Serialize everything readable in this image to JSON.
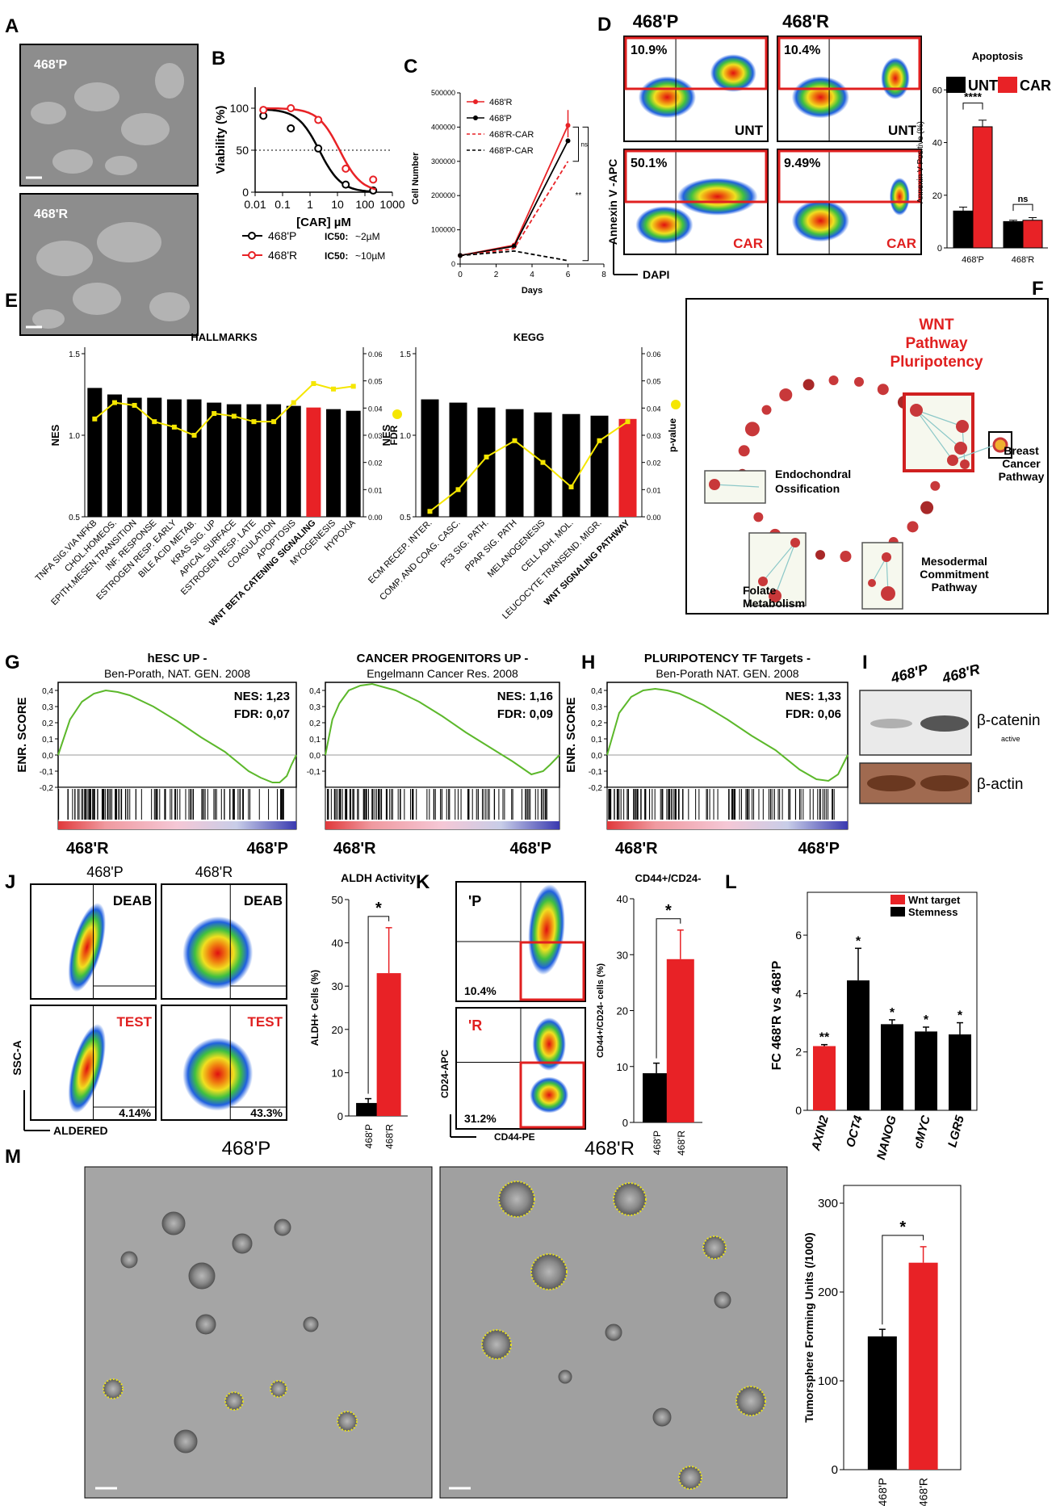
{
  "panel_letters": [
    "A",
    "B",
    "C",
    "D",
    "E",
    "F",
    "G",
    "H",
    "I",
    "J",
    "K",
    "L",
    "M"
  ],
  "colors": {
    "red": "#e82226",
    "black": "#000000",
    "yellow": "#f5e600",
    "green": "#5cb82b",
    "node": "#c8383a"
  },
  "A": {
    "top_label": "468'P",
    "bottom_label": "468'R"
  },
  "chart_data": [
    {
      "id": "B",
      "type": "line",
      "xlabel": "[CAR] µM",
      "ylabel": "Viability (%)",
      "xlim": [
        0.01,
        1000
      ],
      "ylim": [
        0,
        125
      ],
      "xscale": "log",
      "xticks": [
        "0.01",
        "0.1",
        "1",
        "10",
        "100",
        "1000"
      ],
      "yticks": [
        "0",
        "50",
        "100"
      ],
      "reference_line": 50,
      "x": [
        0.02,
        0.2,
        2,
        20,
        200
      ],
      "series": [
        {
          "name": "468'P",
          "values": [
            91,
            76,
            52,
            9,
            2
          ],
          "ic50_label": "IC50:",
          "ic50": "~2µM",
          "color": "#000000"
        },
        {
          "name": "468'R",
          "values": [
            98,
            100,
            86,
            28,
            15
          ],
          "ic50_label": "IC50:",
          "ic50": "~10µM",
          "color": "#e82226"
        }
      ]
    },
    {
      "id": "C",
      "type": "line",
      "xlabel": "Days",
      "ylabel": "Cell Number",
      "xlim": [
        0,
        8
      ],
      "ylim": [
        0,
        500000
      ],
      "xticks": [
        "0",
        "2",
        "4",
        "6",
        "8"
      ],
      "yticks": [
        "0",
        "100000",
        "200000",
        "300000",
        "400000",
        "500000"
      ],
      "x": [
        0,
        3,
        6
      ],
      "series": [
        {
          "name": "468'R",
          "values": [
            25000,
            55000,
            405000
          ],
          "color": "#e82226",
          "dash": false
        },
        {
          "name": "468'P",
          "values": [
            25000,
            52000,
            360000
          ],
          "color": "#000000",
          "dash": false
        },
        {
          "name": "468'R-CAR",
          "values": [
            25000,
            45000,
            300000
          ],
          "color": "#e82226",
          "dash": true
        },
        {
          "name": "468'P-CAR",
          "values": [
            25000,
            38000,
            10000
          ],
          "color": "#000000",
          "dash": true
        }
      ],
      "annotations": [
        "ns",
        "**"
      ]
    },
    {
      "id": "D",
      "type": "bar",
      "title": "Apoptosis",
      "ylabel": "Annexin V Positive (%)",
      "ylim": [
        0,
        65
      ],
      "yticks": [
        "0",
        "20",
        "40",
        "60"
      ],
      "categories": [
        "468'P",
        "468'R"
      ],
      "series": [
        {
          "name": "UNT",
          "values": [
            14,
            10
          ],
          "errors": [
            1.5,
            0.5
          ],
          "color": "#000000"
        },
        {
          "name": "CAR",
          "values": [
            46,
            10.5
          ],
          "errors": [
            2.5,
            1
          ],
          "color": "#e82226"
        }
      ],
      "significance": [
        "****",
        "ns"
      ]
    },
    {
      "id": "E1",
      "type": "bar",
      "title": "HALLMARKS",
      "ylabel": "NES",
      "y2label": "FDR",
      "ylim": [
        0.5,
        1.5
      ],
      "yticks": [
        "0.5",
        "1.0",
        "1.5"
      ],
      "y2lim": [
        0,
        0.06
      ],
      "y2ticks": [
        "0.00",
        "0.01",
        "0.02",
        "0.03",
        "0.04",
        "0.05",
        "0.06"
      ],
      "categories": [
        "TNFA SIG.VIA NFKB",
        "CHOL.HOMEOS.",
        "EPITH.MESEN.TRANSITION",
        "INF. RESPONSE",
        "ESTROGEN RESP. EARLY",
        "BILE ACID METAB.",
        "KRAS SIG. UP",
        "APICAL SURFACE",
        "ESTROGEN RESP. LATE",
        "COAGULATION",
        "APOPTOSIS",
        "WNT BETA CATENING SIGNALING",
        "MYOGENESIS",
        "HYPOXIA"
      ],
      "values": [
        1.29,
        1.25,
        1.23,
        1.23,
        1.22,
        1.22,
        1.2,
        1.19,
        1.19,
        1.19,
        1.18,
        1.17,
        1.16,
        1.15
      ],
      "line_values": [
        0.036,
        0.042,
        0.041,
        0.035,
        0.033,
        0.03,
        0.038,
        0.037,
        0.035,
        0.035,
        0.042,
        0.049,
        0.047,
        0.048
      ],
      "highlight_index": 11
    },
    {
      "id": "E2",
      "type": "bar",
      "title": "KEGG",
      "ylabel": "NES",
      "y2label": "p-value",
      "ylim": [
        0.5,
        1.5
      ],
      "yticks": [
        "0.5",
        "1.0",
        "1.5"
      ],
      "y2lim": [
        0,
        0.06
      ],
      "y2ticks": [
        "0.00",
        "0.01",
        "0.02",
        "0.03",
        "0.04",
        "0.05",
        "0.06"
      ],
      "categories": [
        "ECM RECEP. INTER.",
        "COMP. AND COAG. CASC.",
        "P53 SIG. PATH.",
        "PPAR SIG. PATH",
        "MELANOGENESIS",
        "CELL ADH. MOL.",
        "LEUCOCYTE TRANSEND. MIGR.",
        "WNT SIGNALING PATHWAY"
      ],
      "values": [
        1.22,
        1.2,
        1.17,
        1.16,
        1.14,
        1.13,
        1.12,
        1.1
      ],
      "line_values": [
        0.002,
        0.01,
        0.022,
        0.028,
        0.02,
        0.011,
        0.028,
        0.035
      ],
      "highlight_index": 7
    },
    {
      "id": "G1",
      "type": "line",
      "title": "hESC UP",
      "subtitle": "Ben-Porath, NAT. GEN. 2008",
      "ylabel": "ENR. SCORE",
      "yticks": [
        "0,4",
        "0,3",
        "0,2",
        "0,1",
        "0,0",
        "-0,1",
        "-0,2"
      ],
      "ylim": [
        -0.2,
        0.45
      ],
      "stats": [
        "NES: 1,23",
        "FDR: 0,07"
      ],
      "x_left": "468'R",
      "x_right": "468'P",
      "x": [
        0,
        5,
        10,
        15,
        20,
        25,
        30,
        40,
        50,
        60,
        70,
        80,
        85,
        90,
        93,
        96,
        98,
        100
      ],
      "values": [
        0.0,
        0.22,
        0.33,
        0.38,
        0.4,
        0.39,
        0.37,
        0.3,
        0.21,
        0.11,
        0.02,
        -0.1,
        -0.14,
        -0.17,
        -0.17,
        -0.13,
        -0.06,
        0.0
      ]
    },
    {
      "id": "G2",
      "type": "line",
      "title": "CANCER PROGENITORS UP",
      "subtitle": "Engelmann Cancer Res. 2008",
      "yticks": [
        "0,4",
        "0,3",
        "0,2",
        "0,1",
        "0,0",
        "-0,1"
      ],
      "ylim": [
        -0.15,
        0.45
      ],
      "stats": [
        "NES: 1,16",
        "FDR: 0,09"
      ],
      "x_left": "468'R",
      "x_right": "468'P",
      "x": [
        0,
        3,
        6,
        10,
        15,
        20,
        25,
        30,
        40,
        50,
        60,
        70,
        80,
        88,
        93,
        96,
        100
      ],
      "values": [
        0.0,
        0.22,
        0.32,
        0.4,
        0.43,
        0.44,
        0.42,
        0.4,
        0.33,
        0.24,
        0.14,
        0.05,
        -0.04,
        -0.12,
        -0.1,
        -0.06,
        0.0
      ]
    },
    {
      "id": "H",
      "type": "line",
      "title": "PLURIPOTENCY TF Targets",
      "subtitle": "Ben-Porath NAT. GEN. 2008",
      "ylabel": "ENR. SCORE",
      "yticks": [
        "0,4",
        "0,3",
        "0,2",
        "0,1",
        "0,0",
        "-0,1",
        "-0,2"
      ],
      "ylim": [
        -0.2,
        0.45
      ],
      "stats": [
        "NES: 1,33",
        "FDR: 0,06"
      ],
      "x_left": "468'R",
      "x_right": "468'P",
      "x": [
        0,
        5,
        10,
        15,
        20,
        25,
        30,
        40,
        50,
        60,
        70,
        80,
        87,
        92,
        96,
        98,
        100
      ],
      "values": [
        0.0,
        0.26,
        0.36,
        0.4,
        0.41,
        0.4,
        0.38,
        0.31,
        0.22,
        0.12,
        0.03,
        -0.09,
        -0.15,
        -0.16,
        -0.12,
        -0.06,
        0.0
      ]
    },
    {
      "id": "J",
      "type": "bar",
      "title": "ALDH Activity",
      "ylabel": "ALDH+ Cells (%)",
      "ylim": [
        0,
        50
      ],
      "yticks": [
        "0",
        "10",
        "20",
        "30",
        "40",
        "50"
      ],
      "categories": [
        "468'P",
        "468'R"
      ],
      "values": [
        3,
        33
      ],
      "errors": [
        1,
        10.5
      ],
      "bar_colors": [
        "#000000",
        "#e82226"
      ],
      "significance": "*"
    },
    {
      "id": "K",
      "type": "bar",
      "title": "CD44+/CD24-",
      "ylabel": "CD44+/CD24- cells (%)",
      "ylim": [
        0,
        40
      ],
      "yticks": [
        "0",
        "10",
        "20",
        "30",
        "40"
      ],
      "categories": [
        "468'P",
        "468'R"
      ],
      "values": [
        8.8,
        29.2
      ],
      "errors": [
        1.8,
        5.2
      ],
      "bar_colors": [
        "#000000",
        "#e82226"
      ],
      "significance": "*"
    },
    {
      "id": "L",
      "type": "bar",
      "ylabel": "FC 468'R vs 468'P",
      "ylim": [
        0,
        6.5
      ],
      "yticks": [
        "0",
        "2",
        "4",
        "6"
      ],
      "categories": [
        "AXIN2",
        "OCT4",
        "NANOG",
        "cMYC",
        "LGR5"
      ],
      "values": [
        2.2,
        4.45,
        2.95,
        2.7,
        2.6
      ],
      "errors": [
        0.05,
        1.1,
        0.15,
        0.15,
        0.4
      ],
      "bar_colors": [
        "#e82226",
        "#000000",
        "#000000",
        "#000000",
        "#000000"
      ],
      "significance": [
        "**",
        "*",
        "*",
        "*",
        "*"
      ],
      "legend": [
        {
          "name": "Wnt target",
          "color": "#e82226"
        },
        {
          "name": "Stemness",
          "color": "#000000"
        }
      ]
    },
    {
      "id": "M",
      "type": "bar",
      "ylabel": "Tumorsphere Forming Units  (/1000)",
      "ylim": [
        0,
        320
      ],
      "yticks": [
        "0",
        "100",
        "200",
        "300"
      ],
      "categories": [
        "468'P",
        "468'R"
      ],
      "values": [
        150,
        233
      ],
      "errors": [
        8,
        18
      ],
      "bar_colors": [
        "#000000",
        "#e82226"
      ],
      "significance": "*"
    }
  ],
  "D": {
    "top_left": "468'P",
    "top_right": "468'R",
    "quad_pct": [
      "10.9%",
      "10.4%",
      "50.1%",
      "9.49%"
    ],
    "quad_tag": [
      "UNT",
      "UNT",
      "CAR",
      "CAR"
    ],
    "yaxis": "Annexin V -APC",
    "xaxis": "DAPI"
  },
  "F": {
    "title": [
      "WNT",
      "Pathway",
      "Pluripotency"
    ],
    "labels": {
      "endo": [
        "Endochondral",
        "Ossification"
      ],
      "breast": [
        "Breast",
        "Cancer",
        "Pathway"
      ],
      "folate": [
        "Folate",
        "Metabolism"
      ],
      "meso": [
        "Mesodermal",
        "Commitment",
        "Pathway"
      ]
    }
  },
  "I": {
    "lane1": "468'P",
    "lane2": "468'R",
    "band1": "β-catenin",
    "band1_sub": "active",
    "band2": "β-actin"
  },
  "J": {
    "top_left": "468'P",
    "top_right": "468'R",
    "tag_top": "DEAB",
    "tag_bottom": "TEST",
    "pct_left": "4.14%",
    "pct_right": "43.3%",
    "yaxis": "SSC-A",
    "xaxis": "ALDERED"
  },
  "K": {
    "tag_top": "'P",
    "tag_bottom": "'R",
    "pct_top": "10.4%",
    "pct_bottom": "31.2%",
    "yaxis": "CD24-APC",
    "xaxis": "CD44-PE"
  },
  "M": {
    "left_label": "468'P",
    "right_label": "468'R"
  }
}
